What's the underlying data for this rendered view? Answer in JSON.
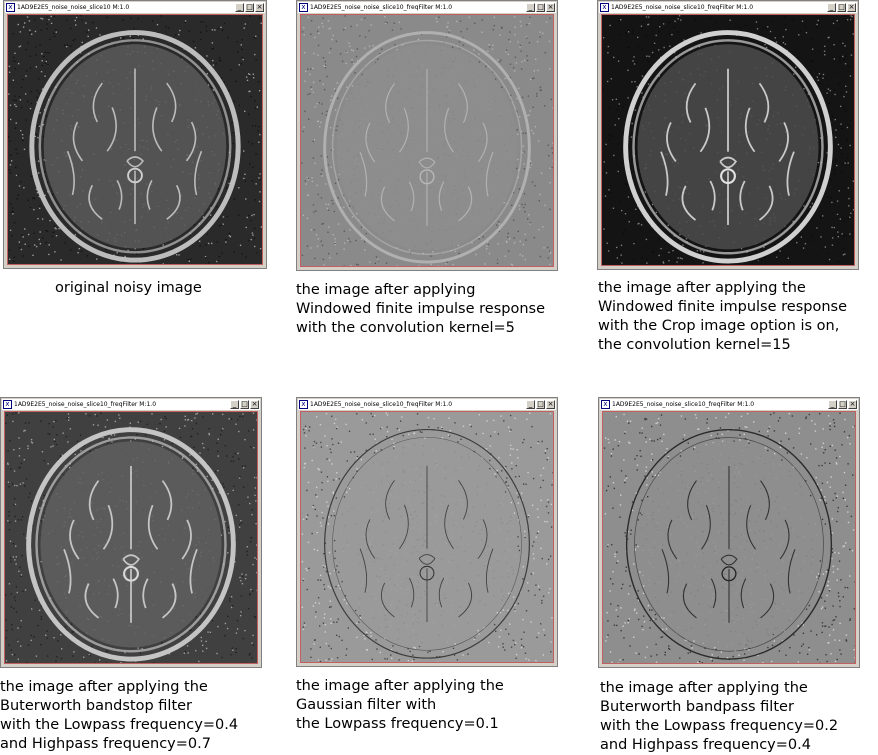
{
  "windows": [
    {
      "title": "1AD9E2E5_noise_noise_slice10 M:1.0",
      "buttons": {
        "minimize": "_",
        "maximize": "□",
        "close": "×"
      },
      "caption": "original noisy image",
      "style": "original"
    },
    {
      "title": "1AD9E2E5_noise_noise_slice10_freqFilter M:1.0",
      "buttons": {
        "minimize": "_",
        "maximize": "□",
        "close": "×"
      },
      "caption": "the image after applying\nWindowed finite impulse response\nwith the convolution kernel=5",
      "style": "fir5"
    },
    {
      "title": "1AD9E2E5_noise_noise_slice10_freqFilter M:1.0",
      "buttons": {
        "minimize": "_",
        "maximize": "□",
        "close": "×"
      },
      "caption": "the image after applying the\nWindowed finite impulse response\nwith the Crop image option is on,\nthe convolution kernel=15",
      "style": "fir15"
    },
    {
      "title": "1AD9E2E5_noise_noise_slice10_freqFilter M:1.0",
      "buttons": {
        "minimize": "_",
        "maximize": "□",
        "close": "×"
      },
      "caption": "the image after applying the\nButerworth bandstop filter\nwith the Lowpass frequency=0.4\nand Highpass frequency=0.7",
      "style": "bandstop"
    },
    {
      "title": "1AD9E2E5_noise_noise_slice10_freqFilter M:1.0",
      "buttons": {
        "minimize": "_",
        "maximize": "□",
        "close": "×"
      },
      "caption": "the image after applying the\nGaussian filter with\nthe Lowpass frequency=0.1",
      "style": "gaussian"
    },
    {
      "title": "1AD9E2E5_noise_noise_slice10_freqFilter M:1.0",
      "buttons": {
        "minimize": "_",
        "maximize": "□",
        "close": "×"
      },
      "caption": "the image after applying the\nButerworth bandpass filter\nwith the Lowpass frequency=0.2\nand Highpass frequency=0.4",
      "style": "bandpass"
    }
  ]
}
